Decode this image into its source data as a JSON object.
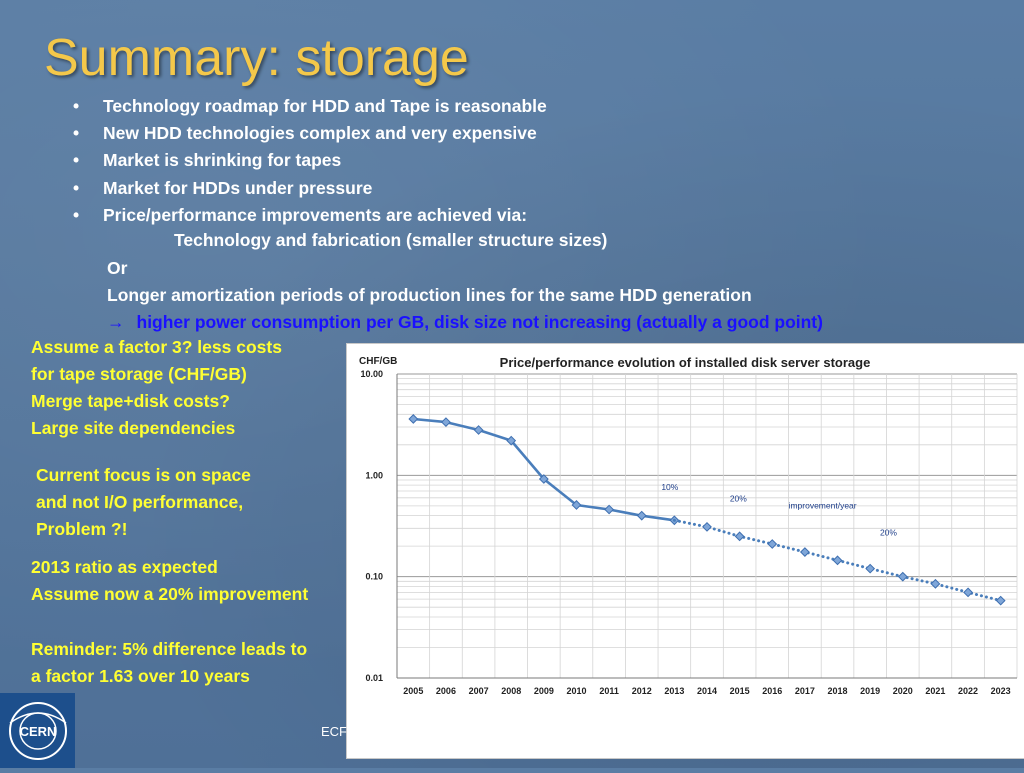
{
  "slide": {
    "title": "Summary: storage",
    "bullets": [
      "Technology roadmap for HDD and Tape is reasonable",
      "New HDD technologies complex and very expensive",
      "Market is shrinking for tapes",
      "Market for HDDs under pressure",
      "Price/performance improvements are achieved via:"
    ],
    "sub_technology": "Technology and fabrication (smaller structure sizes)",
    "sub_or": "Or",
    "sub_longer": "Longer amortization periods of production lines for the same HDD generation",
    "sub_consequence_arrow": "→",
    "sub_consequence": "higher power consumption per GB, disk size not increasing (actually a good point)",
    "notes": {
      "tape": [
        "Assume a factor 3? less costs",
        "for tape storage (CHF/GB)",
        "Merge tape+disk costs?",
        "Large site dependencies"
      ],
      "focus": [
        "Current focus is on space",
        "and not I/O performance,",
        "Problem ?!"
      ],
      "ratio": [
        "2013 ratio as expected",
        "Assume now a 20% improvement"
      ],
      "reminder": [
        "Reminder: 5% difference leads to",
        "a factor 1.63 over 10 years"
      ]
    },
    "footer_text": "ECF",
    "logo_text": "CERN",
    "colors": {
      "title": "#f4c84a",
      "notes": "#ffff33",
      "consequence": "#1a10ff",
      "series": "#4a7ebb"
    }
  },
  "chart_data": {
    "type": "line",
    "title": "Price/performance evolution of installed disk server storage",
    "ylabel": "CHF/GB",
    "yscale": "log",
    "ylim": [
      0.01,
      10.0
    ],
    "yticks": [
      "10.00",
      "1.00",
      "0.10",
      "0.01"
    ],
    "grid": true,
    "categories": [
      "2005",
      "2006",
      "2007",
      "2008",
      "2009",
      "2010",
      "2011",
      "2012",
      "2013",
      "2014",
      "2015",
      "2016",
      "2017",
      "2018",
      "2019",
      "2020",
      "2021",
      "2022",
      "2023"
    ],
    "series": [
      {
        "style": "solid",
        "x": [
          "2005",
          "2006",
          "2007",
          "2008",
          "2009",
          "2010",
          "2011",
          "2012",
          "2013"
        ],
        "values": [
          3.6,
          3.35,
          2.8,
          2.2,
          0.92,
          0.51,
          0.46,
          0.4,
          0.36
        ]
      },
      {
        "style": "dotted",
        "x": [
          "2013",
          "2014",
          "2015",
          "2016",
          "2017",
          "2018",
          "2019",
          "2020",
          "2021",
          "2022",
          "2023"
        ],
        "values": [
          0.36,
          0.31,
          0.25,
          0.21,
          0.175,
          0.145,
          0.12,
          0.1,
          0.085,
          0.07,
          0.058
        ]
      }
    ],
    "annotations": [
      {
        "text": "10%",
        "x": "2012.6",
        "y": 0.72
      },
      {
        "text": "20%",
        "x": "2014.7",
        "y": 0.55
      },
      {
        "text": "improvement/year",
        "x": "2016.5",
        "y": 0.47
      },
      {
        "text": "20%",
        "x": "2019.3",
        "y": 0.255
      }
    ]
  }
}
